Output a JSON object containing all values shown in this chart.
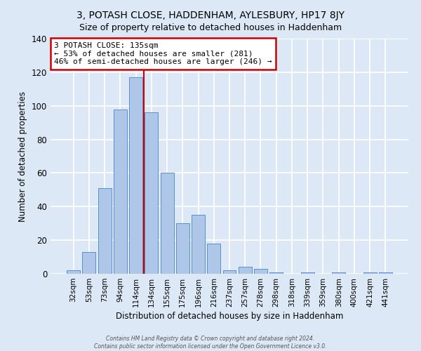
{
  "title": "3, POTASH CLOSE, HADDENHAM, AYLESBURY, HP17 8JY",
  "subtitle": "Size of property relative to detached houses in Haddenham",
  "xlabel": "Distribution of detached houses by size in Haddenham",
  "ylabel": "Number of detached properties",
  "bar_labels": [
    "32sqm",
    "53sqm",
    "73sqm",
    "94sqm",
    "114sqm",
    "134sqm",
    "155sqm",
    "175sqm",
    "196sqm",
    "216sqm",
    "237sqm",
    "257sqm",
    "278sqm",
    "298sqm",
    "318sqm",
    "339sqm",
    "359sqm",
    "380sqm",
    "400sqm",
    "421sqm",
    "441sqm"
  ],
  "bar_values": [
    2,
    13,
    51,
    98,
    117,
    96,
    60,
    30,
    35,
    18,
    2,
    4,
    3,
    1,
    0,
    1,
    0,
    1,
    0,
    1,
    1
  ],
  "bar_color": "#aec6e8",
  "bar_edge_color": "#5b8fc9",
  "vline_color": "#cc0000",
  "ylim": [
    0,
    140
  ],
  "yticks": [
    0,
    20,
    40,
    60,
    80,
    100,
    120,
    140
  ],
  "annotation_title": "3 POTASH CLOSE: 135sqm",
  "annotation_line1": "← 53% of detached houses are smaller (281)",
  "annotation_line2": "46% of semi-detached houses are larger (246) →",
  "annotation_box_color": "#ffffff",
  "annotation_box_edge": "#cc0000",
  "footer1": "Contains HM Land Registry data © Crown copyright and database right 2024.",
  "footer2": "Contains public sector information licensed under the Open Government Licence v3.0.",
  "background_color": "#dce8f5",
  "grid_color": "#ffffff",
  "title_fontsize": 10,
  "subtitle_fontsize": 9
}
